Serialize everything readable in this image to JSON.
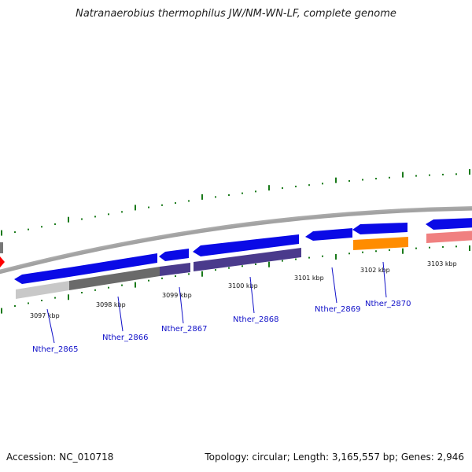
{
  "title": "Natranaerobius thermophilus JW/NM-WN-LF, complete genome",
  "footer": {
    "accession": "Accession: NC_010718",
    "summary": "Topology: circular; Length: 3,165,557 bp; Genes: 2,946"
  },
  "colors": {
    "backbone": "#888888",
    "ticks": "#1a7a1a",
    "gene_blue": "#0a0ae6",
    "gene_purple": "#4a3a8c",
    "gene_grey": "#6a6a6a",
    "gene_lightgrey": "#c8c8c8",
    "gene_orange": "#ff8c00",
    "gene_pink": "#f08080",
    "gene_red": "#ff0000",
    "label": "#1010c8"
  },
  "kbp_labels": [
    "3097 kbp",
    "3098 kbp",
    "3099 kbp",
    "3100 kbp",
    "3101 kbp",
    "3102 kbp",
    "3103 kbp"
  ],
  "gene_labels": [
    "Nther_2865",
    "Nther_2866",
    "Nther_2867",
    "Nther_2868",
    "Nther_2869",
    "Nther_2870"
  ]
}
